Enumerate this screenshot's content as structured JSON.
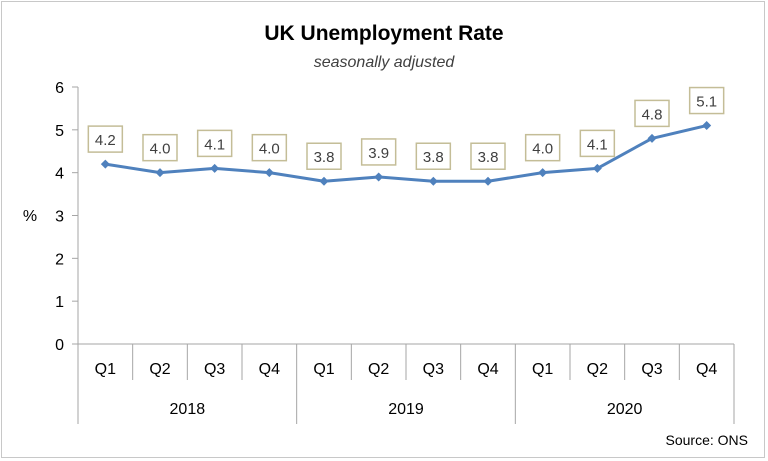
{
  "chart_data": {
    "type": "line",
    "title": "UK Unemployment Rate",
    "subtitle": "seasonally adjusted",
    "ylabel": "%",
    "ylim": [
      0,
      6
    ],
    "yticks": [
      0,
      1,
      2,
      3,
      4,
      5,
      6
    ],
    "categories": [
      "Q1",
      "Q2",
      "Q3",
      "Q4",
      "Q1",
      "Q2",
      "Q3",
      "Q4",
      "Q1",
      "Q2",
      "Q3",
      "Q4"
    ],
    "groups": [
      {
        "label": "2018",
        "span": 4
      },
      {
        "label": "2019",
        "span": 4
      },
      {
        "label": "2020",
        "span": 4
      }
    ],
    "series": [
      {
        "values": [
          4.2,
          4.0,
          4.1,
          4.0,
          3.8,
          3.9,
          3.8,
          3.8,
          4.0,
          4.1,
          4.8,
          5.1
        ],
        "color": "#4f81bd"
      }
    ],
    "data_labels": [
      "4.2",
      "4.0",
      "4.1",
      "4.0",
      "3.8",
      "3.9",
      "3.8",
      "3.8",
      "4.0",
      "4.1",
      "4.8",
      "5.1"
    ],
    "label_box_color": "#c4bd97",
    "grid": false,
    "source": "Source: ONS"
  }
}
